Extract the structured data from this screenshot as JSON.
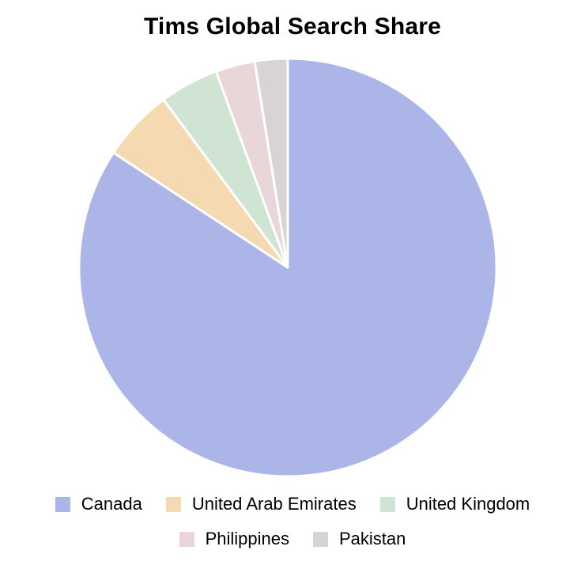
{
  "chart_data": {
    "type": "pie",
    "title": "Tims Global Search Share",
    "categories": [
      "Canada",
      "United Arab Emirates",
      "United Kingdom",
      "Philippines",
      "Pakistan"
    ],
    "values": [
      83,
      5.5,
      4.5,
      3,
      2.5
    ],
    "unit": "%",
    "colors": [
      "#abb5e8",
      "#f5d9b0",
      "#cfe4d3",
      "#e8d6d8",
      "#d8d4d3"
    ],
    "legend_position": "bottom",
    "start_angle": "12 o'clock",
    "direction": "clockwise"
  }
}
